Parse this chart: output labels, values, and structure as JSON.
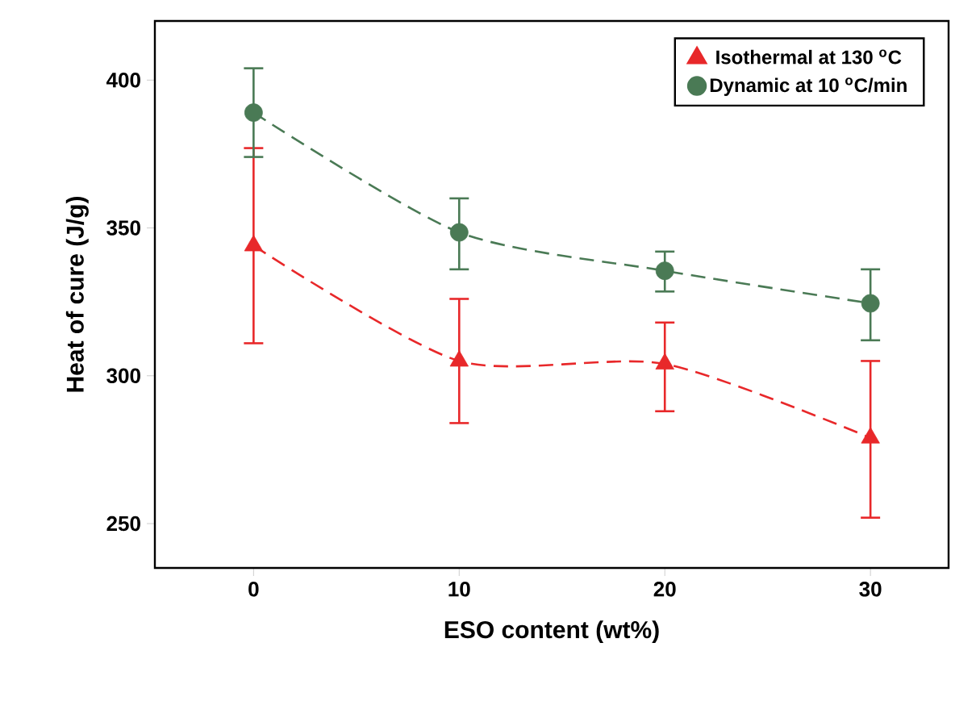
{
  "chart_data": {
    "type": "line",
    "xlabel": "ESO content (wt%)",
    "ylabel": "Heat of cure (J/g)",
    "x": [
      0,
      10,
      20,
      30
    ],
    "series": [
      {
        "name": "Isothermal at 130 $^{o}$C",
        "color": "#e8282a",
        "marker": "triangle",
        "values": [
          344,
          305,
          304,
          279
        ],
        "errors": [
          [
            311,
            377
          ],
          [
            284,
            326
          ],
          [
            288,
            318
          ],
          [
            252,
            305
          ]
        ]
      },
      {
        "name": "Dynamic at 10 $^{o}$C/min",
        "color": "#4a7a55",
        "marker": "circle",
        "values": [
          389,
          348.5,
          335.5,
          324.5
        ],
        "errors": [
          [
            374,
            404
          ],
          [
            336,
            360
          ],
          [
            328.5,
            342
          ],
          [
            312,
            336
          ]
        ]
      }
    ],
    "xlim": [
      -4.8,
      33.8
    ],
    "ylim": [
      235,
      420
    ],
    "xticks": [
      0,
      10,
      20,
      30
    ],
    "yticks": [
      250,
      300,
      350,
      400
    ],
    "line_style": "dashed",
    "legend": "top right",
    "grid": false
  }
}
